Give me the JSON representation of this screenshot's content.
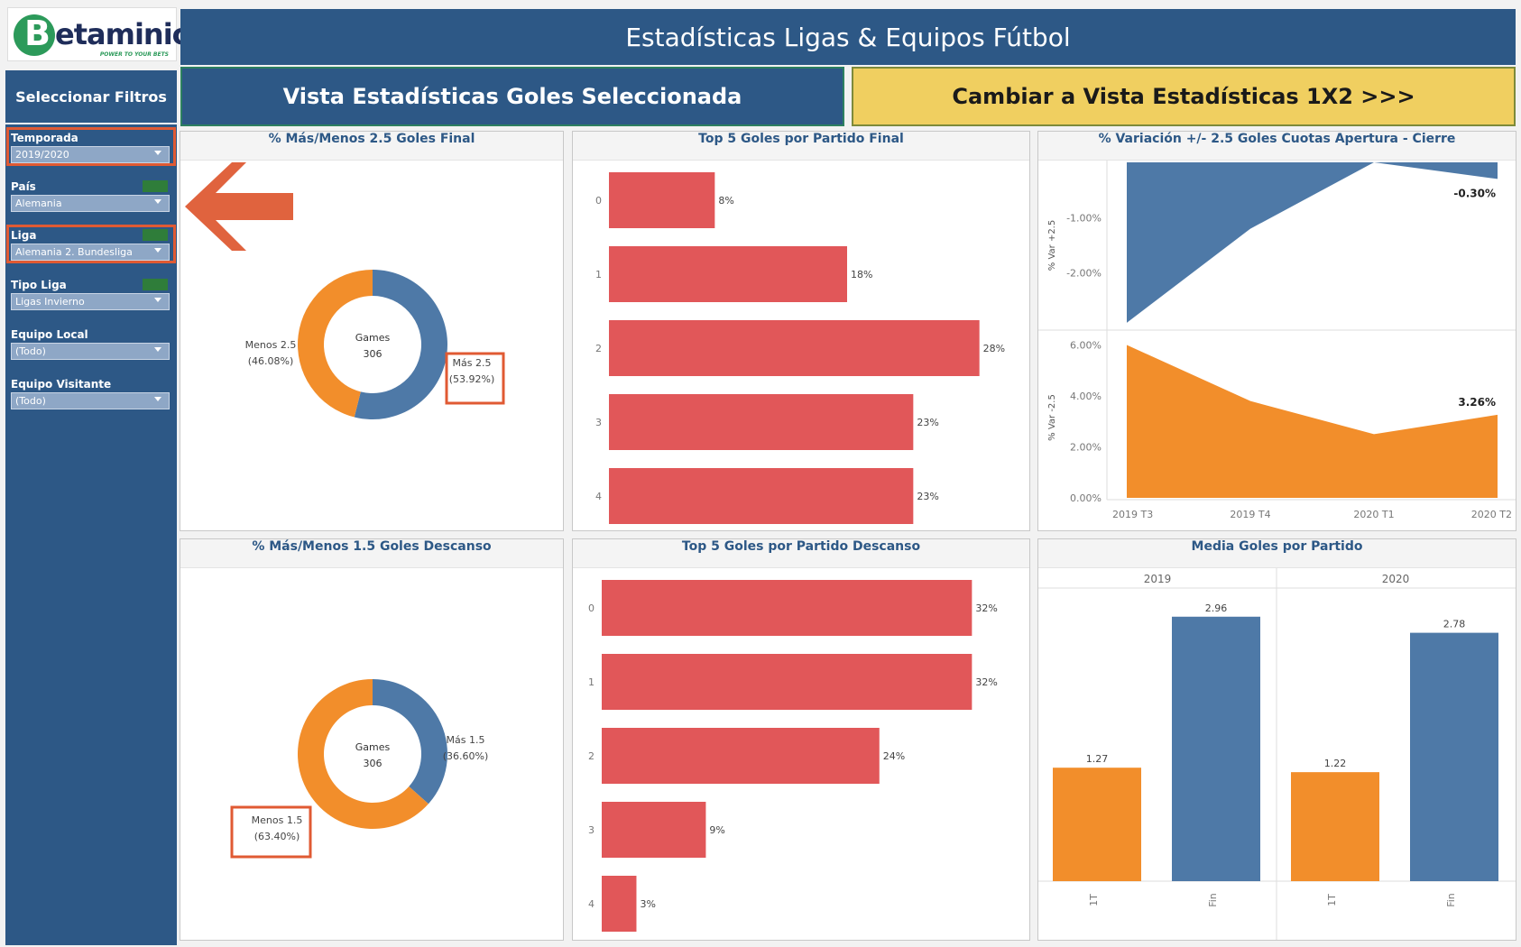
{
  "logo": {
    "text_b": "B",
    "text_name": "etaminic",
    "tagline": "POWER TO YOUR BETS"
  },
  "header": {
    "title": "Estadísticas Ligas & Equipos Fútbol"
  },
  "sidebar": {
    "title": "Seleccionar Filtros",
    "filters": [
      {
        "label": "Temporada",
        "value": "2019/2020",
        "highlighted": true
      },
      {
        "label": "País",
        "value": "Alemania",
        "highlighted": false
      },
      {
        "label": "Liga",
        "value": "Alemania 2. Bundesliga",
        "highlighted": true
      },
      {
        "label": "Tipo Liga",
        "value": "Ligas Invierno",
        "highlighted": false
      },
      {
        "label": "Equipo Local",
        "value": "(Todo)",
        "highlighted": false
      },
      {
        "label": "Equipo Visitante",
        "value": "(Todo)",
        "highlighted": false
      }
    ]
  },
  "views": {
    "selected_label": "Vista Estadísticas Goles Seleccionada",
    "switch_label": "Cambiar a Vista Estadísticas 1X2 >>>"
  },
  "colors": {
    "blue": "#4e79a7",
    "orange": "#f28e2b",
    "red": "#e15759",
    "highlight": "#e05a33",
    "arrow": "#e0633e"
  },
  "chart_data": [
    {
      "id": "donut-25",
      "type": "pie",
      "title": "% Más/Menos 2.5  Goles Final",
      "center_label": "Games",
      "center_value": "306",
      "slices": [
        {
          "name": "Más 2.5",
          "value": 53.92,
          "label": "(53.92%)",
          "color": "#4e79a7"
        },
        {
          "name": "Menos 2.5",
          "value": 46.08,
          "label": "(46.08%)",
          "color": "#f28e2b"
        }
      ]
    },
    {
      "id": "bars-final",
      "type": "bar",
      "title": "Top 5 Goles por Partido Final",
      "categories": [
        "0",
        "1",
        "2",
        "3",
        "4"
      ],
      "values": [
        8,
        18,
        28,
        23,
        23
      ],
      "labels": [
        "8%",
        "18%",
        "28%",
        "23%",
        "23%"
      ],
      "xmax": 30
    },
    {
      "id": "area-var",
      "type": "area",
      "title": "% Variación +/- 2.5 Goles Cuotas Apertura - Cierre",
      "x": [
        "2019 T3",
        "2019 T4",
        "2020 T1",
        "2020 T2"
      ],
      "series": [
        {
          "name": "% Var +2.5",
          "values": [
            -2.9,
            -1.2,
            0.0,
            -0.3
          ],
          "end_label": "-0.30%",
          "ylim": [
            -3.0,
            0.0
          ],
          "ticks": [
            -1.0,
            -2.0
          ],
          "tick_labels": [
            "-1.00%",
            "-2.00%"
          ]
        },
        {
          "name": "% Var -2.5",
          "values": [
            6.0,
            3.8,
            2.5,
            3.26
          ],
          "end_label": "3.26%",
          "ylim": [
            0.0,
            6.3
          ],
          "ticks": [
            0,
            2,
            4,
            6
          ],
          "tick_labels": [
            "0.00%",
            "2.00%",
            "4.00%",
            "6.00%"
          ]
        }
      ]
    },
    {
      "id": "donut-15",
      "type": "pie",
      "title": "% Más/Menos 1.5 Goles Descanso",
      "center_label": "Games",
      "center_value": "306",
      "slices": [
        {
          "name": "Más 1.5",
          "value": 36.6,
          "label": "(36.60%)",
          "color": "#4e79a7"
        },
        {
          "name": "Menos 1.5",
          "value": 63.4,
          "label": "(63.40%)",
          "color": "#f28e2b"
        }
      ]
    },
    {
      "id": "bars-descanso",
      "type": "bar",
      "title": "Top 5 Goles por Partido Descanso",
      "categories": [
        "0",
        "1",
        "2",
        "3",
        "4"
      ],
      "values": [
        32,
        32,
        24,
        9,
        3
      ],
      "labels": [
        "32%",
        "32%",
        "24%",
        "9%",
        "3%"
      ],
      "xmax": 34
    },
    {
      "id": "media-goles",
      "type": "bar",
      "title": "Media Goles por Partido",
      "groups": [
        "2019",
        "2020"
      ],
      "categories": [
        "1T",
        "Fin"
      ],
      "values": [
        [
          1.27,
          2.96
        ],
        [
          1.22,
          2.78
        ]
      ],
      "labels": [
        [
          "1.27",
          "2.96"
        ],
        [
          "1.22",
          "2.78"
        ]
      ],
      "ylim": [
        0,
        3.2
      ]
    }
  ]
}
